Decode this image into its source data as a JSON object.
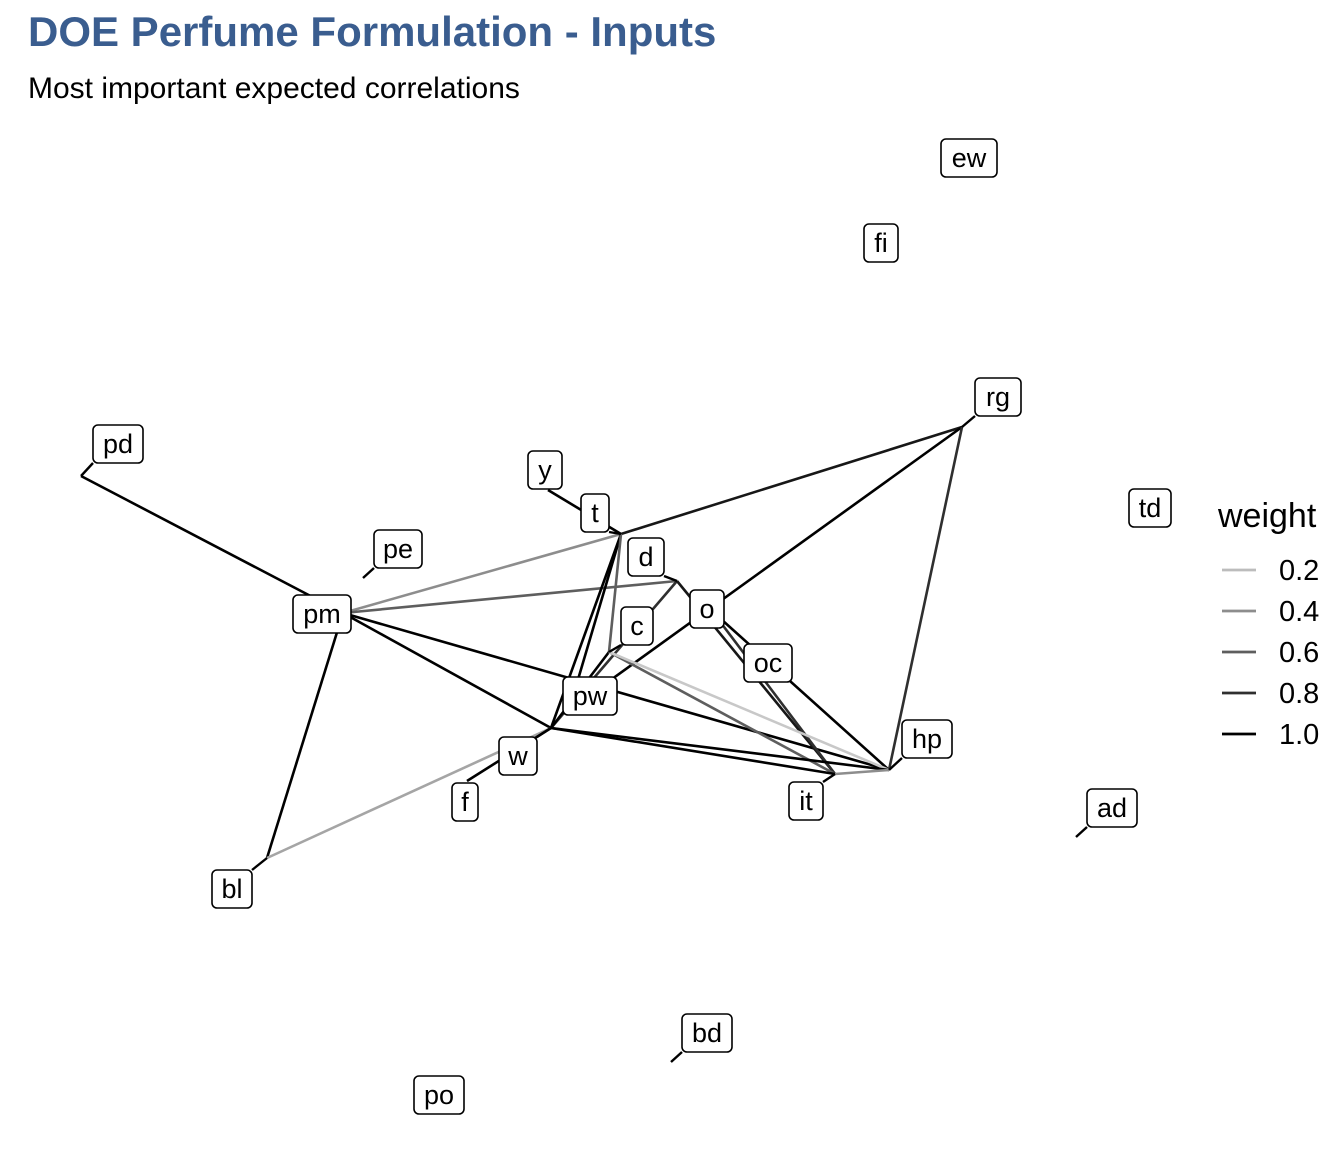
{
  "title": "DOE Perfume Formulation - Inputs",
  "subtitle": "Most important expected correlations",
  "legend": {
    "title": "weight",
    "entries": [
      {
        "label": "0.2",
        "weight": 0.2
      },
      {
        "label": "0.4",
        "weight": 0.4
      },
      {
        "label": "0.6",
        "weight": 0.6
      },
      {
        "label": "0.8",
        "weight": 0.8
      },
      {
        "label": "1.0",
        "weight": 1.0
      }
    ]
  },
  "nodes": [
    {
      "id": "ew",
      "label": "ew"
    },
    {
      "id": "fi",
      "label": "fi"
    },
    {
      "id": "rg",
      "label": "rg"
    },
    {
      "id": "pd",
      "label": "pd"
    },
    {
      "id": "y",
      "label": "y"
    },
    {
      "id": "t",
      "label": "t"
    },
    {
      "id": "td",
      "label": "td"
    },
    {
      "id": "pe",
      "label": "pe"
    },
    {
      "id": "d",
      "label": "d"
    },
    {
      "id": "pm",
      "label": "pm"
    },
    {
      "id": "o",
      "label": "o"
    },
    {
      "id": "c",
      "label": "c"
    },
    {
      "id": "oc",
      "label": "oc"
    },
    {
      "id": "pw",
      "label": "pw"
    },
    {
      "id": "hp",
      "label": "hp"
    },
    {
      "id": "w",
      "label": "w"
    },
    {
      "id": "it",
      "label": "it"
    },
    {
      "id": "f",
      "label": "f"
    },
    {
      "id": "ad",
      "label": "ad"
    },
    {
      "id": "bl",
      "label": "bl"
    },
    {
      "id": "bd",
      "label": "bd"
    },
    {
      "id": "po",
      "label": "po"
    }
  ],
  "edges": [
    {
      "from": "pd",
      "to": "pm",
      "weight": 1.0
    },
    {
      "from": "pm",
      "to": "w",
      "weight": 1.0
    },
    {
      "from": "pm",
      "to": "hp",
      "weight": 1.0
    },
    {
      "from": "pm",
      "to": "t",
      "weight": 0.4
    },
    {
      "from": "pm",
      "to": "d",
      "weight": 0.6
    },
    {
      "from": "pm",
      "to": "bl",
      "weight": 1.0
    },
    {
      "from": "bl",
      "to": "w",
      "weight": 0.3
    },
    {
      "from": "y",
      "to": "t",
      "weight": 1.0
    },
    {
      "from": "t",
      "to": "rg",
      "weight": 0.9
    },
    {
      "from": "t",
      "to": "w",
      "weight": 1.0
    },
    {
      "from": "t",
      "to": "pw",
      "weight": 1.0
    },
    {
      "from": "t",
      "to": "c",
      "weight": 0.6
    },
    {
      "from": "rg",
      "to": "pw",
      "weight": 1.0
    },
    {
      "from": "rg",
      "to": "hp",
      "weight": 0.8
    },
    {
      "from": "d",
      "to": "w",
      "weight": 0.8
    },
    {
      "from": "d",
      "to": "it",
      "weight": 0.9
    },
    {
      "from": "o",
      "to": "hp",
      "weight": 1.0
    },
    {
      "from": "o",
      "to": "it",
      "weight": 0.8
    },
    {
      "from": "c",
      "to": "w",
      "weight": 1.0
    },
    {
      "from": "c",
      "to": "it",
      "weight": 0.6
    },
    {
      "from": "c",
      "to": "hp",
      "weight": 0.15
    },
    {
      "from": "w",
      "to": "it",
      "weight": 1.0
    },
    {
      "from": "w",
      "to": "hp",
      "weight": 1.0
    },
    {
      "from": "w",
      "to": "f",
      "weight": 1.0
    },
    {
      "from": "it",
      "to": "hp",
      "weight": 0.4
    }
  ]
}
